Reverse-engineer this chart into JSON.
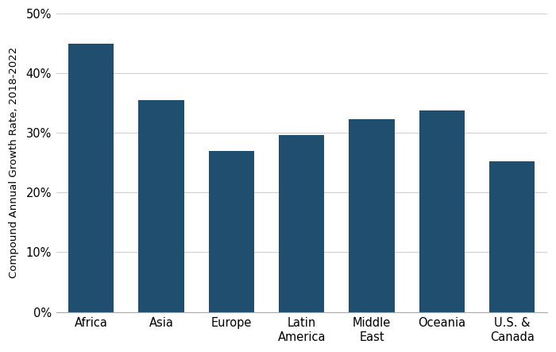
{
  "categories": [
    "Africa",
    "Asia",
    "Europe",
    "Latin\nAmerica",
    "Middle\nEast",
    "Oceania",
    "U.S. &\nCanada"
  ],
  "values": [
    0.45,
    0.355,
    0.27,
    0.296,
    0.323,
    0.338,
    0.252
  ],
  "bar_color": "#1f4e6e",
  "ylabel": "Compound Annual Growth Rate, 2018-2022",
  "ylim": [
    0,
    0.5
  ],
  "yticks": [
    0.0,
    0.1,
    0.2,
    0.3,
    0.4,
    0.5
  ],
  "ytick_labels": [
    "0%",
    "10%",
    "20%",
    "30%",
    "40%",
    "50%"
  ],
  "background_color": "#ffffff",
  "grid_color": "#d0d0d0",
  "ylabel_fontsize": 9.5,
  "tick_fontsize": 10.5,
  "bar_width": 0.65
}
